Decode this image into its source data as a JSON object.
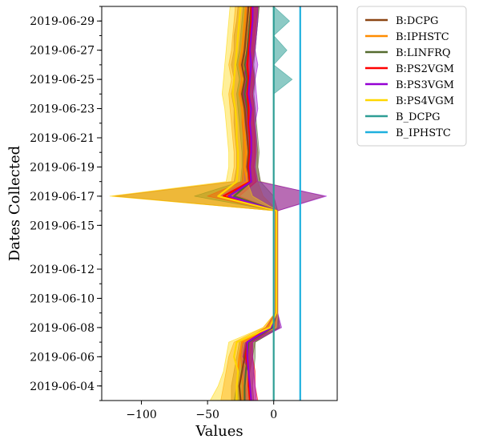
{
  "chart_data": {
    "type": "line",
    "orientation": "horizontal-values",
    "xlabel": "Values",
    "ylabel": "Dates Collected",
    "xlim": [
      -130,
      48
    ],
    "x_ticks": [
      -100,
      -50,
      0
    ],
    "x_tick_labels": [
      "−100",
      "−50",
      "0"
    ],
    "y_dates": [
      "2019-06-03",
      "2019-06-04",
      "2019-06-05",
      "2019-06-06",
      "2019-06-07",
      "2019-06-08",
      "2019-06-09",
      "2019-06-10",
      "2019-06-11",
      "2019-06-12",
      "2019-06-13",
      "2019-06-15",
      "2019-06-16",
      "2019-06-17",
      "2019-06-18",
      "2019-06-19",
      "2019-06-20",
      "2019-06-21",
      "2019-06-22",
      "2019-06-23",
      "2019-06-24",
      "2019-06-25",
      "2019-06-26",
      "2019-06-27",
      "2019-06-28",
      "2019-06-29",
      "2019-06-30"
    ],
    "y_tick_labels": [
      "2019-06-04",
      "2019-06-06",
      "2019-06-08",
      "2019-06-10",
      "2019-06-12",
      "2019-06-15",
      "2019-06-17",
      "2019-06-19",
      "2019-06-21",
      "2019-06-23",
      "2019-06-25",
      "2019-06-27",
      "2019-06-29"
    ],
    "legend_position": "outside-right",
    "series": [
      {
        "name": "B:DCPG",
        "color": "#8B4513",
        "values": [
          -25,
          -26,
          -24,
          -22,
          -20,
          -2,
          2,
          2,
          2,
          2,
          2,
          2,
          2,
          -35,
          -18,
          -20,
          -19,
          -20,
          -21,
          -22,
          -24,
          -22,
          -24,
          -22,
          -21,
          -20,
          -19
        ],
        "lower": [
          -32,
          -32,
          -30,
          -28,
          -26,
          -6,
          1,
          1,
          1,
          1,
          1,
          1,
          1,
          -120,
          -30,
          -28,
          -28,
          -29,
          -30,
          -30,
          -32,
          -30,
          -32,
          -30,
          -30,
          -28,
          -27
        ],
        "upper": [
          -18,
          -20,
          -18,
          -16,
          -14,
          5,
          3,
          3,
          3,
          3,
          3,
          3,
          3,
          38,
          -10,
          -12,
          -12,
          -13,
          -14,
          -14,
          -16,
          -14,
          -16,
          -14,
          -13,
          -12,
          -11
        ]
      },
      {
        "name": "B:IPHSTC",
        "color": "#FF8C00",
        "values": [
          -28,
          -28,
          -27,
          -26,
          -24,
          -4,
          2,
          2,
          2,
          2,
          2,
          2,
          2,
          -37,
          -20,
          -22,
          -21,
          -22,
          -23,
          -24,
          -26,
          -24,
          -26,
          -24,
          -23,
          -22,
          -21
        ],
        "lower": [
          -40,
          -38,
          -36,
          -34,
          -30,
          -8,
          1,
          1,
          1,
          1,
          1,
          1,
          1,
          -122,
          -32,
          -30,
          -30,
          -31,
          -32,
          -33,
          -34,
          -32,
          -34,
          -32,
          -31,
          -30,
          -29
        ],
        "upper": [
          -18,
          -20,
          -18,
          -18,
          -16,
          4,
          3,
          3,
          3,
          3,
          3,
          3,
          3,
          -8,
          -12,
          -14,
          -13,
          -14,
          -15,
          -16,
          -18,
          -16,
          -18,
          -16,
          -15,
          -14,
          -13
        ]
      },
      {
        "name": "B:LINFRQ",
        "color": "#556B2F",
        "values": [
          -22,
          -22,
          -21,
          -20,
          -19,
          -1,
          2,
          2,
          2,
          2,
          2,
          2,
          2,
          -30,
          -17,
          -18,
          -17,
          -18,
          -19,
          -20,
          -22,
          -20,
          -22,
          -20,
          -19,
          -18,
          -17
        ],
        "lower": [
          -30,
          -28,
          -27,
          -26,
          -24,
          -5,
          1,
          1,
          1,
          1,
          1,
          1,
          1,
          -60,
          -25,
          -24,
          -24,
          -25,
          -26,
          -27,
          -28,
          -26,
          -28,
          -26,
          -25,
          -24,
          -23
        ],
        "upper": [
          -15,
          -16,
          -15,
          -14,
          -14,
          4,
          3,
          3,
          3,
          3,
          3,
          3,
          3,
          0,
          -10,
          -12,
          -11,
          -12,
          -13,
          -14,
          -15,
          -14,
          -15,
          -14,
          -13,
          -12,
          -11
        ]
      },
      {
        "name": "B:PS2VGM",
        "color": "#FF0000",
        "values": [
          -18,
          -19,
          -19,
          -21,
          -20,
          -3,
          2,
          2,
          2,
          2,
          2,
          2,
          2,
          -38,
          -18,
          -19,
          -18,
          -18,
          -19,
          -19,
          -20,
          -19,
          -20,
          -19,
          -18,
          -17,
          -17
        ],
        "lower": [
          -24,
          -24,
          -24,
          -25,
          -24,
          -6,
          1,
          1,
          1,
          1,
          1,
          1,
          1,
          -50,
          -24,
          -23,
          -23,
          -23,
          -24,
          -24,
          -25,
          -24,
          -25,
          -24,
          -23,
          -22,
          -21
        ],
        "upper": [
          -12,
          -14,
          -14,
          -16,
          -16,
          1,
          3,
          3,
          3,
          3,
          3,
          3,
          3,
          -26,
          -13,
          -15,
          -14,
          -14,
          -15,
          -15,
          -16,
          -15,
          -16,
          -15,
          -14,
          -13,
          -12
        ]
      },
      {
        "name": "B:PS3VGM",
        "color": "#9400D3",
        "values": [
          -17,
          -18,
          -19,
          -20,
          -20,
          -2,
          2,
          2,
          2,
          2,
          2,
          2,
          2,
          -34,
          -17,
          -18,
          -17,
          -17,
          -18,
          -17,
          -19,
          -18,
          -17,
          -18,
          -17,
          -16,
          -16
        ],
        "lower": [
          -21,
          -22,
          -23,
          -24,
          -24,
          -5,
          1,
          1,
          1,
          1,
          1,
          1,
          1,
          -40,
          -22,
          -22,
          -21,
          -21,
          -22,
          -22,
          -23,
          -22,
          -22,
          -22,
          -21,
          -20,
          -20
        ],
        "upper": [
          -13,
          -14,
          -15,
          -16,
          -16,
          6,
          3,
          3,
          3,
          3,
          3,
          3,
          3,
          40,
          -12,
          -14,
          -13,
          -13,
          -14,
          -12,
          -13,
          -14,
          -12,
          -14,
          -13,
          -12,
          -12
        ]
      },
      {
        "name": "B:PS4VGM",
        "color": "#FFD700",
        "values": [
          -28,
          -28,
          -27,
          -30,
          -28,
          -3,
          2,
          2,
          2,
          2,
          2,
          2,
          2,
          -42,
          -28,
          -27,
          -27,
          -28,
          -28,
          -29,
          -31,
          -30,
          -29,
          -28,
          -27,
          -26,
          -25
        ],
        "lower": [
          -48,
          -42,
          -38,
          -36,
          -34,
          -8,
          1,
          1,
          1,
          1,
          1,
          1,
          1,
          -124,
          -36,
          -34,
          -34,
          -35,
          -36,
          -37,
          -39,
          -38,
          -37,
          -36,
          -35,
          -34,
          -33
        ],
        "upper": [
          -18,
          -20,
          -20,
          -24,
          -22,
          2,
          3,
          3,
          3,
          3,
          3,
          3,
          3,
          -16,
          -20,
          -20,
          -20,
          -21,
          -21,
          -22,
          -24,
          -23,
          -22,
          -21,
          -20,
          -19,
          -18
        ]
      },
      {
        "name": "B_DCPG",
        "color": "#2E9E95",
        "values": [
          0,
          0,
          0,
          0,
          0,
          0,
          0,
          0,
          0,
          0,
          0,
          0,
          0,
          0,
          0,
          0,
          0,
          0,
          0,
          0,
          0,
          0,
          0,
          0,
          0,
          0,
          0
        ],
        "lower": [
          0,
          0,
          0,
          0,
          0,
          0,
          0,
          0,
          0,
          0,
          0,
          0,
          0,
          0,
          0,
          0,
          0,
          0,
          0,
          0,
          0,
          0,
          0,
          0,
          0,
          0,
          0
        ],
        "upper": [
          0,
          0,
          0,
          0,
          0,
          0,
          0,
          0,
          0,
          0,
          0,
          0,
          0,
          0,
          0,
          0,
          0,
          0,
          0,
          0,
          0,
          14,
          0,
          10,
          0,
          12,
          0
        ]
      },
      {
        "name": "B_IPHSTC",
        "color": "#1FB0DE",
        "values": [
          20,
          20,
          20,
          20,
          20,
          20,
          20,
          20,
          20,
          20,
          20,
          20,
          20,
          20,
          20,
          20,
          20,
          20,
          20,
          20,
          20,
          20,
          20,
          20,
          20,
          20,
          20
        ],
        "lower": [
          20,
          20,
          20,
          20,
          20,
          20,
          20,
          20,
          20,
          20,
          20,
          20,
          20,
          20,
          20,
          20,
          20,
          20,
          20,
          20,
          20,
          20,
          20,
          20,
          20,
          20,
          20
        ],
        "upper": [
          20,
          20,
          20,
          20,
          20,
          20,
          20,
          20,
          20,
          20,
          20,
          20,
          20,
          20,
          20,
          20,
          20,
          20,
          20,
          20,
          20,
          20,
          20,
          20,
          20,
          20,
          20
        ]
      }
    ]
  }
}
